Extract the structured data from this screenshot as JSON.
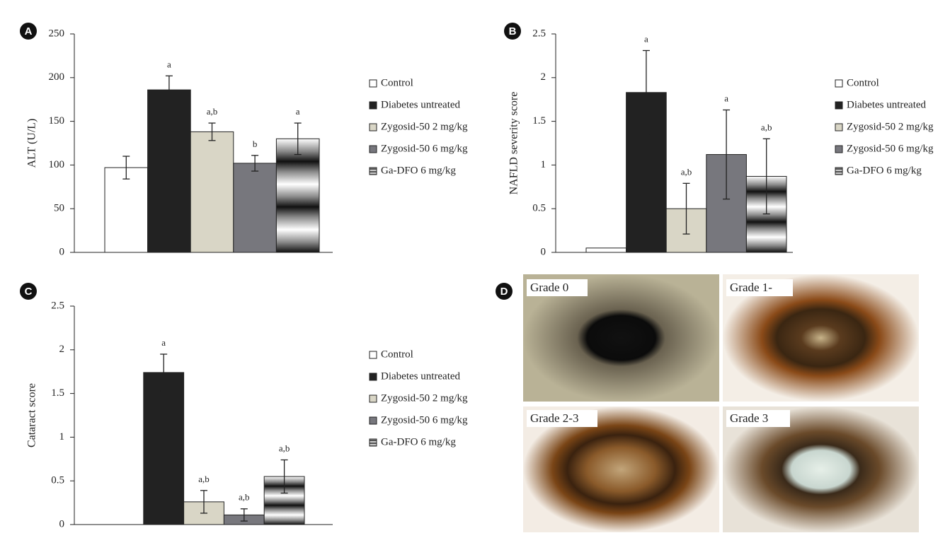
{
  "chart_data": [
    {
      "type": "bar",
      "panel_label": "A",
      "ylabel": "ALT (U/L)",
      "categories": [
        "Control",
        "Diabetes untreated",
        "Zygosid-50 2 mg/kg",
        "Zygosid-50 6 mg/kg",
        "Ga-DFO 6 mg/kg"
      ],
      "values": [
        97,
        186,
        138,
        102,
        130
      ],
      "errors": [
        13,
        16,
        10,
        9,
        18
      ],
      "annotations": [
        null,
        "a",
        "a,b",
        "b",
        "a"
      ],
      "colors": [
        "#ffffff",
        "#222222",
        "#d9d6c6",
        "#77777d",
        "#999999"
      ],
      "fills": [
        "solid",
        "solid",
        "solid",
        "solid",
        "banded"
      ],
      "ylim": [
        0,
        250
      ],
      "yticks": [
        0,
        50,
        100,
        150,
        200,
        250
      ]
    },
    {
      "type": "bar",
      "panel_label": "B",
      "ylabel": "NAFLD severity score",
      "categories": [
        "Control",
        "Diabetes untreated",
        "Zygosid-50 2 mg/kg",
        "Zygosid-50 6 mg/kg",
        "Ga-DFO 6 mg/kg"
      ],
      "values": [
        0.05,
        1.83,
        0.5,
        1.12,
        0.87
      ],
      "errors": [
        null,
        0.48,
        0.29,
        0.51,
        0.43
      ],
      "annotations": [
        null,
        "a",
        "a,b",
        "a",
        "a,b"
      ],
      "colors": [
        "#ffffff",
        "#222222",
        "#d9d6c6",
        "#77777d",
        "#999999"
      ],
      "fills": [
        "solid",
        "solid",
        "solid",
        "solid",
        "banded"
      ],
      "ylim": [
        0,
        2.5
      ],
      "yticks": [
        0,
        0.5,
        1,
        1.5,
        2,
        2.5
      ]
    },
    {
      "type": "bar",
      "panel_label": "C",
      "ylabel": "Cataract score",
      "categories": [
        "Control",
        "Diabetes untreated",
        "Zygosid-50 2 mg/kg",
        "Zygosid-50 6 mg/kg",
        "Ga-DFO 6 mg/kg"
      ],
      "values": [
        0,
        1.74,
        0.26,
        0.11,
        0.55
      ],
      "errors": [
        null,
        0.21,
        0.13,
        0.07,
        0.19
      ],
      "annotations": [
        null,
        "a",
        "a,b",
        "a,b",
        "a,b"
      ],
      "colors": [
        "#ffffff",
        "#222222",
        "#d9d6c6",
        "#77777d",
        "#999999"
      ],
      "fills": [
        "solid",
        "solid",
        "solid",
        "solid",
        "banded"
      ],
      "ylim": [
        0,
        2.5
      ],
      "yticks": [
        0,
        0.5,
        1,
        1.5,
        2,
        2.5
      ]
    }
  ],
  "panel_d": {
    "label": "D",
    "photos": [
      "Grade 0",
      "Grade 1-",
      "Grade 2-3",
      "Grade 3"
    ]
  }
}
